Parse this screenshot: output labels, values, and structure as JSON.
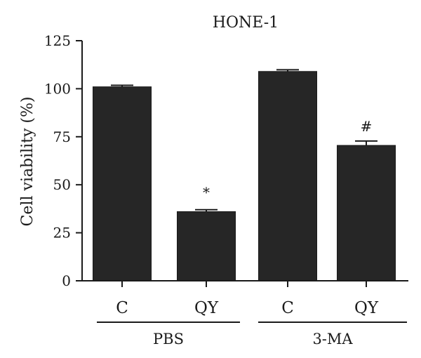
{
  "chart_data": {
    "type": "bar",
    "title": "HONE-1",
    "ylabel": "Cell viability (%)",
    "xlabel": "",
    "ylim": [
      0,
      125
    ],
    "yticks": [
      0,
      25,
      50,
      75,
      100,
      125
    ],
    "categories": [
      "C",
      "QY",
      "C",
      "QY"
    ],
    "groups": [
      {
        "label": "PBS",
        "categories": [
          0,
          1
        ]
      },
      {
        "label": "3-MA",
        "categories": [
          2,
          3
        ]
      }
    ],
    "values": [
      101,
      36,
      109,
      70.5
    ],
    "errors": [
      0.8,
      1.0,
      0.9,
      2.3
    ],
    "annotations": [
      "",
      "*",
      "",
      "#"
    ],
    "bar_color": "#262626",
    "grid": false,
    "legend": "none"
  }
}
